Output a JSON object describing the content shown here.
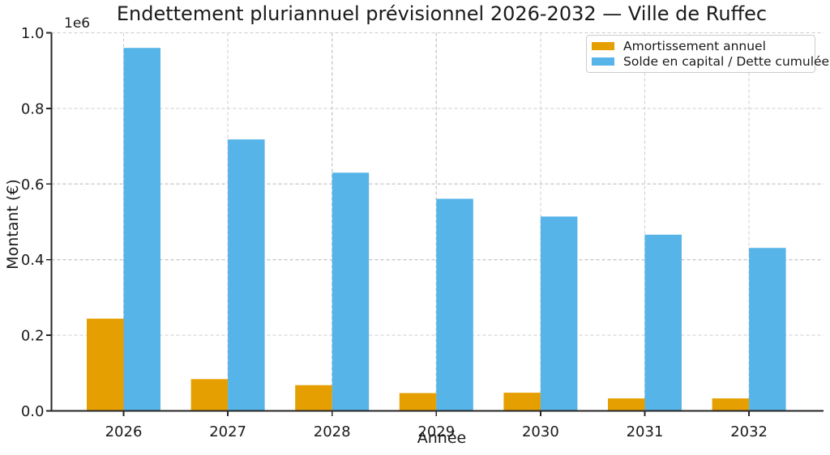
{
  "chart_data": {
    "type": "bar",
    "title": "Endettement pluriannuel prévisionnel 2026-2032 — Ville de Ruffec",
    "xlabel": "Année",
    "ylabel": "Montant (€)",
    "y_offset_text": "1e6",
    "categories": [
      "2026",
      "2027",
      "2028",
      "2029",
      "2030",
      "2031",
      "2032"
    ],
    "series": [
      {
        "name": "Amortissement annuel",
        "color": "#E69F00",
        "values": [
          244000,
          84000,
          68000,
          47000,
          48000,
          33000,
          33000
        ]
      },
      {
        "name": "Solde en capital / Dette cumulée",
        "color": "#56B4E9",
        "values": [
          960000,
          718000,
          630000,
          561000,
          514000,
          466000,
          431000
        ]
      }
    ],
    "ylim": [
      0,
      1000000
    ],
    "yticks": [
      0,
      200000,
      400000,
      600000,
      800000,
      1000000
    ],
    "ytick_labels": [
      "0.0",
      "0.2",
      "0.4",
      "0.6",
      "0.8",
      "1.0"
    ],
    "grid": true,
    "grid_style": "dashed",
    "legend_position": "upper right"
  },
  "style": {
    "background": "#ffffff",
    "grid_color": "#cccccc",
    "spine_color": "#262626",
    "text_color": "#1a1a1a",
    "legend_border": "#cccccc"
  }
}
